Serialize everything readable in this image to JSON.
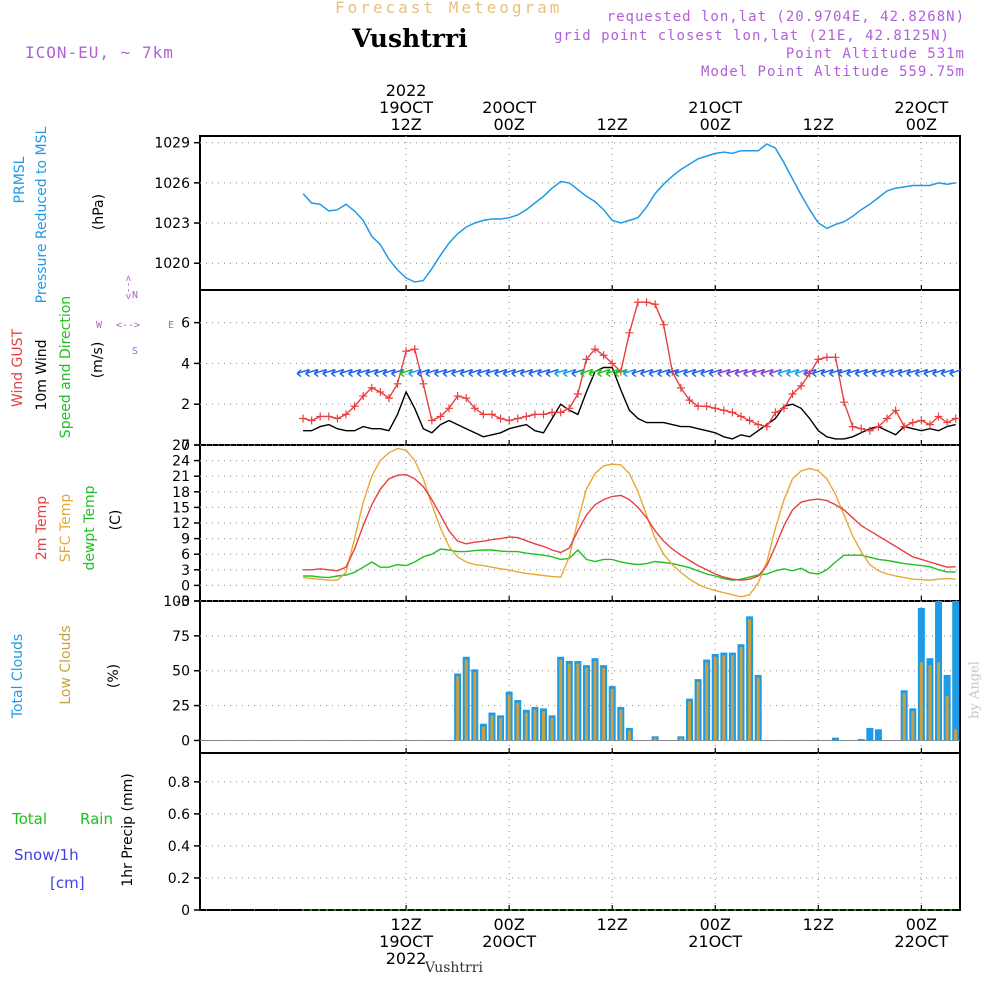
{
  "header": {
    "title_top": "Forecast Meteogram",
    "location": "Vushtrri",
    "model": "ICON-EU, ~ 7km",
    "requested": "requested lon,lat (20.9704E, 42.8268N)",
    "grid_point": "grid point closest lon,lat (21E, 42.8125N)",
    "point_altitude": "Point Altitude 531m",
    "model_altitude": "Model Point Altitude 559.75m"
  },
  "time_axis": {
    "top_labels": [
      {
        "t": 12,
        "lines": [
          "2022",
          "19OCT",
          "12Z"
        ]
      },
      {
        "t": 24,
        "lines": [
          "20OCT",
          "00Z"
        ]
      },
      {
        "t": 36,
        "lines": [
          "12Z"
        ]
      },
      {
        "t": 48,
        "lines": [
          "21OCT",
          "00Z"
        ]
      },
      {
        "t": 60,
        "lines": [
          "12Z"
        ]
      },
      {
        "t": 72,
        "lines": [
          "22OCT",
          "00Z"
        ]
      }
    ],
    "bottom_labels": [
      {
        "t": 12,
        "lines": [
          "12Z",
          "19OCT",
          "2022"
        ]
      },
      {
        "t": 24,
        "lines": [
          "00Z",
          "20OCT"
        ]
      },
      {
        "t": 36,
        "lines": [
          "12Z"
        ]
      },
      {
        "t": 48,
        "lines": [
          "00Z",
          "21OCT"
        ]
      },
      {
        "t": 60,
        "lines": [
          "12Z"
        ]
      },
      {
        "t": 72,
        "lines": [
          "00Z",
          "22OCT"
        ]
      }
    ]
  },
  "panel_labels": {
    "pressure": {
      "l1": "PRMSL",
      "l2": "Pressure Reduced to MSL",
      "unit": "(hPa)"
    },
    "wind": {
      "gust": "Wind GUST",
      "wind10": "10m Wind",
      "speed_dir": "Speed and Direction",
      "unit": "(m/s)",
      "compass": {
        "n": "N",
        "s": "S",
        "w": "W",
        "e": "E",
        "arrow_ns": "<-->",
        "arrow_we": "<-->"
      }
    },
    "temp": {
      "t2m": "2m Temp",
      "sfc": "SFC Temp",
      "dewpt": "dewpt Temp",
      "unit": "(C)"
    },
    "clouds": {
      "total": "Total Clouds",
      "low": "Low Clouds",
      "unit": "(%)"
    },
    "precip": {
      "total": "Total",
      "rain": "Rain",
      "snow": "Snow/1h",
      "snow_unit": "[cm]",
      "unit": "1hr Precip (mm)"
    }
  },
  "footer": {
    "location": "Vushtrri",
    "watermark": "by Angel"
  },
  "colors": {
    "pressure": "#1e9be6",
    "gust": "#e84040",
    "wind10": "#000000",
    "t2m": "#e84040",
    "sfc": "#e8a838",
    "dewpt": "#20c020",
    "total_cloud": "#1e9be6",
    "low_cloud": "#c8a040",
    "compass": "#b060d8",
    "rain": "#20c020",
    "snow": "#4040e8"
  },
  "chart_data": [
    {
      "type": "line",
      "name": "pressure",
      "ylim": [
        1018,
        1029.5
      ],
      "yticks": [
        1020,
        1023,
        1026,
        1029
      ],
      "x": [
        0,
        1,
        2,
        3,
        4,
        5,
        6,
        7,
        8,
        9,
        10,
        11,
        12,
        13,
        14,
        15,
        16,
        17,
        18,
        19,
        20,
        21,
        22,
        23,
        24,
        25,
        26,
        27,
        28,
        29,
        30,
        31,
        32,
        33,
        34,
        35,
        36,
        37,
        38,
        39,
        40,
        41,
        42,
        43,
        44,
        45,
        46,
        47,
        48,
        49,
        50,
        51,
        52,
        53,
        54,
        55,
        56,
        57,
        58,
        59,
        60,
        61,
        62,
        63,
        64,
        65,
        66,
        67,
        68,
        69,
        70,
        71,
        72,
        73,
        74,
        75,
        76
      ],
      "values": [
        1025.2,
        1024.5,
        1024.4,
        1023.9,
        1024.0,
        1024.4,
        1023.9,
        1023.2,
        1022.0,
        1021.4,
        1020.3,
        1019.5,
        1018.9,
        1018.6,
        1018.7,
        1019.6,
        1020.6,
        1021.5,
        1022.2,
        1022.7,
        1023.0,
        1023.2,
        1023.3,
        1023.3,
        1023.4,
        1023.6,
        1024.0,
        1024.5,
        1025.0,
        1025.6,
        1026.1,
        1026.0,
        1025.5,
        1025.0,
        1024.6,
        1024.0,
        1023.2,
        1023.0,
        1023.2,
        1023.4,
        1024.2,
        1025.2,
        1025.9,
        1026.5,
        1027.0,
        1027.4,
        1027.8,
        1028.0,
        1028.2,
        1028.3,
        1028.2,
        1028.4,
        1028.4,
        1028.4,
        1028.9,
        1028.6,
        1027.5,
        1026.3,
        1025.1,
        1024.0,
        1023.0,
        1022.6,
        1022.9,
        1023.1,
        1023.5,
        1024.0,
        1024.4,
        1024.9,
        1025.4,
        1025.6,
        1025.7,
        1025.8,
        1025.8,
        1025.8,
        1026.0,
        1025.9,
        1026.0
      ]
    },
    {
      "type": "line",
      "name": "wind",
      "ylim": [
        0,
        7.6
      ],
      "yticks": [
        0,
        2,
        4,
        6
      ],
      "x": [
        0,
        1,
        2,
        3,
        4,
        5,
        6,
        7,
        8,
        9,
        10,
        11,
        12,
        13,
        14,
        15,
        16,
        17,
        18,
        19,
        20,
        21,
        22,
        23,
        24,
        25,
        26,
        27,
        28,
        29,
        30,
        31,
        32,
        33,
        34,
        35,
        36,
        37,
        38,
        39,
        40,
        41,
        42,
        43,
        44,
        45,
        46,
        47,
        48,
        49,
        50,
        51,
        52,
        53,
        54,
        55,
        56,
        57,
        58,
        59,
        60,
        61,
        62,
        63,
        64,
        65,
        66,
        67,
        68,
        69,
        70,
        71,
        72,
        73,
        74,
        75,
        76
      ],
      "series": [
        {
          "name": "Wind GUST",
          "values": [
            1.3,
            1.2,
            1.4,
            1.4,
            1.3,
            1.5,
            1.9,
            2.4,
            2.8,
            2.6,
            2.3,
            3.0,
            4.6,
            4.7,
            3.0,
            1.2,
            1.4,
            1.8,
            2.4,
            2.3,
            1.8,
            1.5,
            1.5,
            1.3,
            1.2,
            1.3,
            1.4,
            1.5,
            1.5,
            1.6,
            1.6,
            1.8,
            2.5,
            4.2,
            4.7,
            4.4,
            4.0,
            3.6,
            5.5,
            7.0,
            7.0,
            6.9,
            5.9,
            3.6,
            2.8,
            2.2,
            1.9,
            1.9,
            1.8,
            1.7,
            1.6,
            1.4,
            1.2,
            1.0,
            0.9,
            1.6,
            1.8,
            2.5,
            2.9,
            3.5,
            4.2,
            4.3,
            4.3,
            2.1,
            0.9,
            0.8,
            0.7,
            0.9,
            1.3,
            1.7,
            0.9,
            1.1,
            1.2,
            1.0,
            1.4,
            1.1,
            1.3
          ]
        },
        {
          "name": "10m Wind",
          "values": [
            0.7,
            0.7,
            0.9,
            1.0,
            0.8,
            0.7,
            0.7,
            0.9,
            0.8,
            0.8,
            0.7,
            1.5,
            2.6,
            1.8,
            0.8,
            0.6,
            1.0,
            1.2,
            1.0,
            0.8,
            0.6,
            0.4,
            0.5,
            0.6,
            0.8,
            0.9,
            1.0,
            0.7,
            0.6,
            1.3,
            2.0,
            1.7,
            1.5,
            2.6,
            3.6,
            3.8,
            3.8,
            2.7,
            1.7,
            1.3,
            1.1,
            1.1,
            1.1,
            1.0,
            0.9,
            0.9,
            0.8,
            0.7,
            0.6,
            0.4,
            0.3,
            0.5,
            0.4,
            0.7,
            1.0,
            1.3,
            1.9,
            2.0,
            1.8,
            1.3,
            0.7,
            0.4,
            0.3,
            0.3,
            0.4,
            0.6,
            0.8,
            0.9,
            0.7,
            0.5,
            0.9,
            0.8,
            0.7,
            0.8,
            0.7,
            0.9,
            1.0
          ]
        }
      ]
    },
    {
      "type": "line",
      "name": "temperature",
      "ylim": [
        -3,
        27
      ],
      "yticks": [
        -3,
        0,
        3,
        6,
        9,
        12,
        15,
        18,
        21,
        24,
        27
      ],
      "x": [
        0,
        1,
        2,
        3,
        4,
        5,
        6,
        7,
        8,
        9,
        10,
        11,
        12,
        13,
        14,
        15,
        16,
        17,
        18,
        19,
        20,
        21,
        22,
        23,
        24,
        25,
        26,
        27,
        28,
        29,
        30,
        31,
        32,
        33,
        34,
        35,
        36,
        37,
        38,
        39,
        40,
        41,
        42,
        43,
        44,
        45,
        46,
        47,
        48,
        49,
        50,
        51,
        52,
        53,
        54,
        55,
        56,
        57,
        58,
        59,
        60,
        61,
        62,
        63,
        64,
        65,
        66,
        67,
        68,
        69,
        70,
        71,
        72,
        73,
        74,
        75,
        76
      ],
      "series": [
        {
          "name": "2m Temp",
          "values": [
            3.0,
            3.0,
            3.2,
            3.0,
            2.8,
            3.5,
            7.0,
            11.5,
            15.5,
            18.5,
            20.5,
            21.2,
            21.3,
            20.5,
            19.0,
            16.5,
            13.5,
            10.5,
            8.5,
            8.0,
            8.3,
            8.5,
            8.8,
            9.0,
            9.3,
            9.2,
            8.6,
            8.0,
            7.5,
            6.8,
            6.3,
            7.2,
            10.5,
            13.5,
            15.5,
            16.5,
            17.1,
            17.3,
            16.5,
            15.0,
            13.0,
            10.5,
            8.5,
            7.0,
            5.8,
            4.8,
            3.8,
            3.0,
            2.2,
            1.6,
            1.2,
            1.0,
            1.2,
            1.8,
            3.8,
            7.5,
            11.5,
            14.5,
            16.0,
            16.4,
            16.6,
            16.3,
            15.5,
            14.5,
            13.0,
            11.5,
            10.5,
            9.5,
            8.5,
            7.5,
            6.5,
            5.5,
            5.0,
            4.5,
            4.0,
            3.5,
            3.6
          ]
        },
        {
          "name": "SFC Temp",
          "values": [
            1.5,
            1.3,
            1.2,
            1.0,
            1.0,
            2.5,
            9.0,
            16.0,
            21.0,
            24.0,
            25.5,
            26.3,
            26.0,
            24.0,
            20.5,
            15.5,
            11.0,
            7.5,
            5.5,
            4.5,
            4.0,
            3.8,
            3.5,
            3.2,
            3.0,
            2.6,
            2.3,
            2.1,
            1.9,
            1.7,
            1.6,
            5.5,
            12.5,
            18.5,
            21.5,
            23.0,
            23.3,
            23.2,
            21.5,
            18.0,
            13.5,
            9.0,
            6.0,
            4.0,
            2.5,
            1.2,
            0.2,
            -0.5,
            -1.0,
            -1.4,
            -1.8,
            -2.2,
            -1.8,
            0.5,
            4.5,
            11.0,
            16.5,
            20.5,
            22.0,
            22.5,
            22.0,
            20.5,
            17.5,
            13.5,
            9.5,
            6.5,
            4.0,
            2.8,
            2.2,
            1.8,
            1.5,
            1.2,
            1.1,
            1.0,
            1.2,
            1.3,
            1.2
          ]
        },
        {
          "name": "dewpt Temp",
          "values": [
            1.8,
            1.8,
            1.6,
            1.5,
            1.8,
            2.0,
            2.5,
            3.5,
            4.5,
            3.5,
            3.5,
            4.0,
            3.8,
            4.5,
            5.5,
            6.0,
            7.0,
            6.8,
            6.5,
            6.5,
            6.7,
            6.8,
            6.8,
            6.6,
            6.5,
            6.5,
            6.2,
            6.0,
            5.8,
            5.5,
            5.0,
            5.2,
            6.8,
            5.0,
            4.6,
            5.0,
            5.0,
            4.5,
            4.2,
            4.0,
            4.2,
            4.6,
            4.4,
            4.2,
            3.8,
            3.4,
            2.8,
            2.2,
            1.8,
            1.3,
            1.0,
            1.2,
            1.6,
            2.0,
            2.2,
            2.8,
            3.2,
            2.8,
            3.3,
            2.4,
            2.2,
            3.0,
            4.5,
            5.8,
            5.8,
            5.8,
            5.4,
            5.0,
            4.8,
            4.5,
            4.2,
            4.0,
            3.8,
            3.6,
            3.0,
            2.6,
            2.6
          ]
        }
      ]
    },
    {
      "type": "bar",
      "name": "clouds",
      "ylim": [
        -9,
        100
      ],
      "yticks": [
        0,
        25,
        50,
        75,
        100
      ],
      "x": [
        0,
        1,
        2,
        3,
        4,
        5,
        6,
        7,
        8,
        9,
        10,
        11,
        12,
        13,
        14,
        15,
        16,
        17,
        18,
        19,
        20,
        21,
        22,
        23,
        24,
        25,
        26,
        27,
        28,
        29,
        30,
        31,
        32,
        33,
        34,
        35,
        36,
        37,
        38,
        39,
        40,
        41,
        42,
        43,
        44,
        45,
        46,
        47,
        48,
        49,
        50,
        51,
        52,
        53,
        54,
        55,
        56,
        57,
        58,
        59,
        60,
        61,
        62,
        63,
        64,
        65,
        66,
        67,
        68,
        69,
        70,
        71,
        72,
        73,
        74,
        75,
        76
      ],
      "series": [
        {
          "name": "Total Clouds",
          "values": [
            0,
            0,
            0,
            0,
            0,
            0,
            0,
            0,
            0,
            0,
            0,
            0,
            0,
            0,
            0,
            0,
            0,
            0,
            48,
            60,
            51,
            12,
            20,
            18,
            35,
            29,
            22,
            24,
            23,
            18,
            60,
            57,
            57,
            54,
            59,
            54,
            39,
            24,
            9,
            0,
            0,
            3,
            0,
            0,
            3,
            30,
            44,
            58,
            62,
            63,
            63,
            69,
            89,
            47,
            0,
            0,
            0,
            0,
            0,
            0,
            0,
            0,
            2,
            0,
            0,
            1,
            9,
            8,
            0,
            0,
            36,
            23,
            95,
            59,
            100,
            47,
            100
          ]
        },
        {
          "name": "Low Clouds",
          "values": [
            0,
            0,
            0,
            0,
            0,
            0,
            0,
            0,
            0,
            0,
            0,
            0,
            0,
            0,
            0,
            0,
            0,
            0,
            46,
            58,
            49,
            10,
            18,
            16,
            33,
            27,
            20,
            22,
            21,
            16,
            58,
            55,
            55,
            52,
            57,
            52,
            37,
            22,
            7,
            0,
            0,
            2,
            0,
            0,
            2,
            28,
            42,
            56,
            60,
            61,
            61,
            67,
            87,
            45,
            0,
            0,
            0,
            0,
            0,
            0,
            0,
            0,
            0,
            0,
            0,
            0,
            0,
            0,
            0,
            0,
            34,
            21,
            56,
            54,
            56,
            32,
            8
          ]
        }
      ]
    },
    {
      "type": "line",
      "name": "precip",
      "ylim": [
        0,
        0.98
      ],
      "yticks": [
        0,
        0.2,
        0.4,
        0.6,
        0.8
      ],
      "ytick_labels": [
        "0",
        "0.2",
        "0.4",
        "0.6",
        "0.8"
      ],
      "x": [
        0,
        76
      ],
      "series": [
        {
          "name": "Total Rain",
          "values": [
            0,
            0
          ]
        },
        {
          "name": "Snow/1h",
          "values": [
            0,
            0
          ]
        }
      ]
    }
  ]
}
